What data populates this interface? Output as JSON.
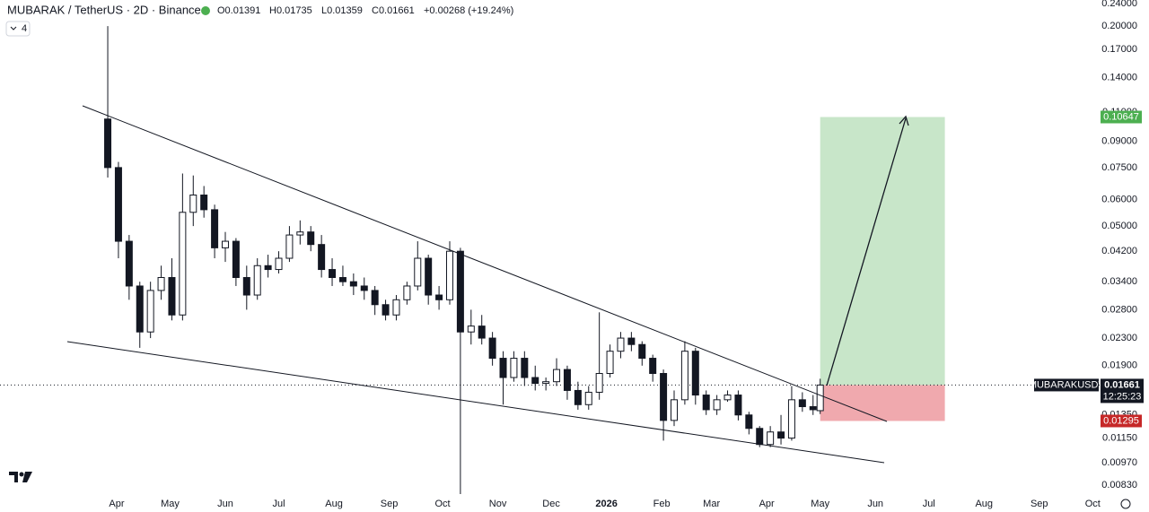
{
  "chart_data": {
    "type": "candlestick",
    "title": "MUBARAK / TetherUS · 2D · Binance",
    "ohlc_labels": [
      "O0.01391",
      "H0.01735",
      "L0.01359",
      "C0.01661",
      "+0.00268 (+19.24%)"
    ],
    "indicator_count": "4",
    "symbol": "MUBARAKUSDT",
    "countdown": "12:25:23",
    "log_scale": true,
    "grid": false,
    "up_color": "#ffffff",
    "down_color": "#131722",
    "x": [
      -5,
      1,
      7,
      13,
      19,
      25,
      31,
      37,
      43,
      49,
      55,
      61,
      67,
      73,
      79,
      85,
      91,
      97,
      103,
      109,
      115,
      121,
      127,
      133,
      139,
      145,
      151,
      157,
      163,
      169,
      175,
      181,
      187,
      193,
      199,
      205,
      211,
      217,
      223,
      229,
      235,
      241,
      247,
      253,
      259,
      265,
      271,
      277,
      283,
      289,
      295,
      301,
      307,
      313,
      319,
      325,
      331,
      337,
      343,
      349,
      355,
      361,
      367,
      373,
      379,
      385,
      391,
      395
    ],
    "open": [
      0.105,
      0.075,
      0.045,
      0.033,
      0.024,
      0.032,
      0.035,
      0.027,
      0.055,
      0.062,
      0.056,
      0.043,
      0.045,
      0.035,
      0.031,
      0.038,
      0.037,
      0.04,
      0.047,
      0.048,
      0.044,
      0.037,
      0.035,
      0.034,
      0.033,
      0.032,
      0.029,
      0.027,
      0.03,
      0.033,
      0.04,
      0.031,
      0.03,
      0.042,
      0.024,
      0.025,
      0.023,
      0.02,
      0.0175,
      0.02,
      0.0175,
      0.0168,
      0.017,
      0.0185,
      0.016,
      0.0145,
      0.0158,
      0.018,
      0.021,
      0.023,
      0.022,
      0.02,
      0.018,
      0.013,
      0.015,
      0.021,
      0.0155,
      0.014,
      0.015,
      0.0155,
      0.0135,
      0.0123,
      0.011,
      0.012,
      0.0115,
      0.015,
      0.0143,
      0.01391
    ],
    "high": [
      0.2,
      0.078,
      0.047,
      0.034,
      0.034,
      0.038,
      0.04,
      0.072,
      0.071,
      0.066,
      0.058,
      0.048,
      0.046,
      0.038,
      0.04,
      0.041,
      0.042,
      0.05,
      0.052,
      0.05,
      0.047,
      0.04,
      0.038,
      0.036,
      0.035,
      0.033,
      0.03,
      0.031,
      0.034,
      0.045,
      0.041,
      0.033,
      0.045,
      0.043,
      0.028,
      0.027,
      0.024,
      0.021,
      0.021,
      0.021,
      0.019,
      0.0175,
      0.02,
      0.019,
      0.017,
      0.0165,
      0.0275,
      0.022,
      0.024,
      0.024,
      0.0225,
      0.0205,
      0.0185,
      0.016,
      0.0225,
      0.0215,
      0.016,
      0.0155,
      0.016,
      0.016,
      0.0138,
      0.0125,
      0.0125,
      0.0135,
      0.0165,
      0.0158,
      0.0155,
      0.01735
    ],
    "low": [
      0.07,
      0.04,
      0.03,
      0.0215,
      0.023,
      0.03,
      0.026,
      0.026,
      0.05,
      0.053,
      0.04,
      0.039,
      0.033,
      0.028,
      0.03,
      0.035,
      0.036,
      0.039,
      0.044,
      0.042,
      0.035,
      0.033,
      0.033,
      0.031,
      0.03,
      0.027,
      0.026,
      0.026,
      0.029,
      0.032,
      0.029,
      0.028,
      0.029,
      0.0078,
      0.022,
      0.022,
      0.019,
      0.0145,
      0.017,
      0.0165,
      0.016,
      0.016,
      0.0165,
      0.015,
      0.014,
      0.014,
      0.015,
      0.0175,
      0.02,
      0.021,
      0.019,
      0.017,
      0.0113,
      0.0125,
      0.0145,
      0.0145,
      0.0135,
      0.0135,
      0.0148,
      0.013,
      0.0118,
      0.0108,
      0.0108,
      0.011,
      0.0113,
      0.0138,
      0.0135,
      0.01359
    ],
    "close": [
      0.075,
      0.045,
      0.033,
      0.024,
      0.032,
      0.035,
      0.027,
      0.055,
      0.062,
      0.056,
      0.043,
      0.045,
      0.035,
      0.031,
      0.038,
      0.037,
      0.04,
      0.047,
      0.048,
      0.044,
      0.037,
      0.035,
      0.034,
      0.033,
      0.032,
      0.029,
      0.027,
      0.03,
      0.033,
      0.04,
      0.031,
      0.03,
      0.042,
      0.024,
      0.025,
      0.023,
      0.02,
      0.0175,
      0.02,
      0.0175,
      0.0168,
      0.017,
      0.0185,
      0.016,
      0.0145,
      0.0158,
      0.018,
      0.021,
      0.023,
      0.022,
      0.02,
      0.018,
      0.013,
      0.015,
      0.021,
      0.0155,
      0.014,
      0.015,
      0.0155,
      0.0135,
      0.0123,
      0.011,
      0.012,
      0.0115,
      0.015,
      0.0143,
      0.014,
      0.01661
    ],
    "last_price": 0.01661,
    "position": {
      "target": 0.10647,
      "stop": 0.01295,
      "start": 395,
      "end": 465,
      "profit_color": "#c8e6c9",
      "loss_color": "#f0a9ae"
    },
    "xlim": [
      -65.5,
      551.9
    ],
    "ylim": [
      0.00689,
      0.2396
    ],
    "xticks": [
      {
        "value": 0,
        "label": "Apr"
      },
      {
        "value": 30,
        "label": "May"
      },
      {
        "value": 61,
        "label": "Jun"
      },
      {
        "value": 91,
        "label": "Jul"
      },
      {
        "value": 122,
        "label": "Aug"
      },
      {
        "value": 153,
        "label": "Sep"
      },
      {
        "value": 183,
        "label": "Oct"
      },
      {
        "value": 214,
        "label": "Nov"
      },
      {
        "value": 244,
        "label": "Dec"
      },
      {
        "value": 275,
        "label": "2026"
      },
      {
        "value": 306,
        "label": "Feb"
      },
      {
        "value": 334,
        "label": "Mar"
      },
      {
        "value": 365,
        "label": "Apr"
      },
      {
        "value": 395,
        "label": "May"
      },
      {
        "value": 426,
        "label": "Jun"
      },
      {
        "value": 456,
        "label": "Jul"
      },
      {
        "value": 487,
        "label": "Aug"
      },
      {
        "value": 518,
        "label": "Sep"
      },
      {
        "value": 548,
        "label": "Oct"
      }
    ],
    "yticks": [
      {
        "value": 0.24,
        "label": "0.24000"
      },
      {
        "value": 0.2,
        "label": "0.20000"
      },
      {
        "value": 0.17,
        "label": "0.17000"
      },
      {
        "value": 0.14,
        "label": "0.14000"
      },
      {
        "value": 0.11,
        "label": "0.11000"
      },
      {
        "value": 0.09,
        "label": "0.09000"
      },
      {
        "value": 0.075,
        "label": "0.07500"
      },
      {
        "value": 0.06,
        "label": "0.06000"
      },
      {
        "value": 0.05,
        "label": "0.05000"
      },
      {
        "value": 0.042,
        "label": "0.04200"
      },
      {
        "value": 0.034,
        "label": "0.03400"
      },
      {
        "value": 0.028,
        "label": "0.02800"
      },
      {
        "value": 0.023,
        "label": "0.02300"
      },
      {
        "value": 0.019,
        "label": "0.01900"
      },
      {
        "value": 0.0135,
        "label": "0.01350"
      },
      {
        "value": 0.0115,
        "label": "0.01150"
      },
      {
        "value": 0.0097,
        "label": "0.00970"
      },
      {
        "value": 0.0083,
        "label": "0.00830"
      }
    ]
  }
}
